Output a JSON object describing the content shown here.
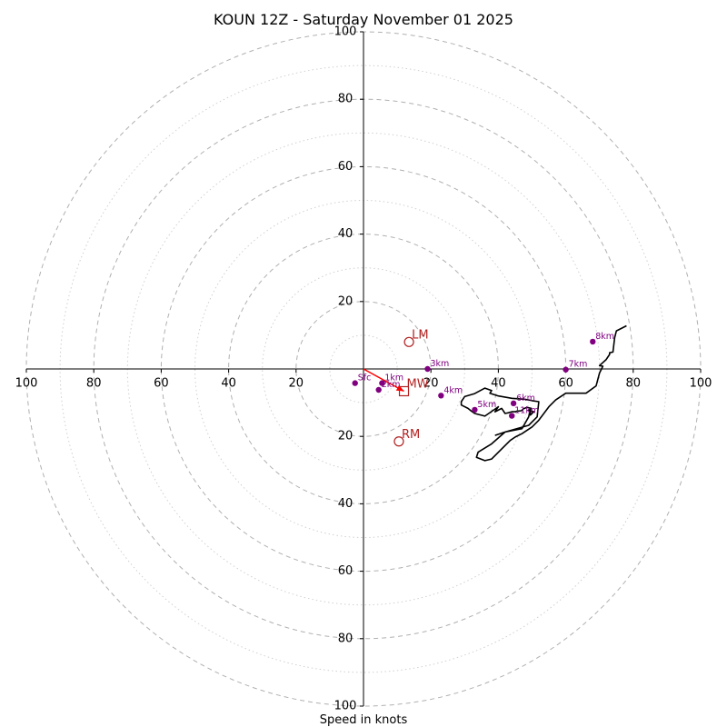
{
  "chart_data": {
    "type": "hodograph",
    "title": "KOUN 12Z - Saturday November 01 2025",
    "xlabel": "Speed in knots",
    "units": "knots",
    "range": [
      -100,
      100
    ],
    "ring_major": [
      20,
      40,
      60,
      80,
      100
    ],
    "ring_minor": [
      10,
      30,
      50,
      70,
      90
    ],
    "ticks": {
      "x": [
        {
          "v": -100,
          "label": "100"
        },
        {
          "v": -80,
          "label": "80"
        },
        {
          "v": -60,
          "label": "60"
        },
        {
          "v": -40,
          "label": "40"
        },
        {
          "v": -20,
          "label": "20"
        },
        {
          "v": 20,
          "label": "20"
        },
        {
          "v": 40,
          "label": "40"
        },
        {
          "v": 60,
          "label": "60"
        },
        {
          "v": 80,
          "label": "80"
        },
        {
          "v": 100,
          "label": "100"
        }
      ],
      "y": [
        {
          "v": 100,
          "label": "100"
        },
        {
          "v": 80,
          "label": "80"
        },
        {
          "v": 60,
          "label": "60"
        },
        {
          "v": 40,
          "label": "40"
        },
        {
          "v": 20,
          "label": "20"
        },
        {
          "v": -20,
          "label": "20"
        },
        {
          "v": -40,
          "label": "40"
        },
        {
          "v": -60,
          "label": "60"
        },
        {
          "v": -80,
          "label": "80"
        },
        {
          "v": -100,
          "label": "100"
        }
      ]
    },
    "wind_profile": [
      [
        -13,
        -12.5
      ],
      [
        -10,
        -11.5
      ],
      [
        -5,
        -10.5
      ],
      [
        -3,
        -7
      ],
      [
        -2.5,
        -4.5
      ],
      [
        -2.5,
        -6.5
      ],
      [
        -1.5,
        -5.5
      ],
      [
        -3,
        -5
      ],
      [
        -2.2,
        -4.5
      ],
      [
        -3.5,
        -4.2
      ],
      [
        -4.5,
        -4.6
      ],
      [
        -5.2,
        -5.2
      ],
      [
        -6.5,
        -5.3
      ],
      [
        -7,
        -5.5
      ],
      [
        -8,
        -5.5
      ],
      [
        -9,
        -5.8
      ],
      [
        -10,
        -6
      ],
      [
        -11,
        -4.5
      ],
      [
        -13,
        -5.5
      ],
      [
        -12,
        -4
      ],
      [
        -16,
        -6.8
      ],
      [
        -19,
        -6
      ],
      [
        -20,
        -5.3
      ],
      [
        -21,
        -4.5
      ],
      [
        -23,
        -3.5
      ],
      [
        -23,
        -2.5
      ],
      [
        -22,
        -1
      ],
      [
        -19,
        -0.1
      ],
      [
        -16,
        1.5
      ],
      [
        -14,
        0.8
      ],
      [
        -14.5,
        0
      ],
      [
        -12,
        -0.8
      ],
      [
        -8,
        -1.5
      ],
      [
        -4,
        -1.8
      ],
      [
        -2,
        -2.2
      ],
      [
        0,
        -2.5
      ],
      [
        -0.5,
        -7
      ],
      [
        -3,
        -9.5
      ],
      [
        -10,
        -11.5
      ],
      [
        -14,
        -15
      ],
      [
        -18,
        -17.5
      ],
      [
        -18.5,
        -19
      ],
      [
        -16,
        -20
      ],
      [
        -14,
        -19.5
      ],
      [
        -8.5,
        -14
      ],
      [
        -7,
        -13
      ],
      [
        -5,
        -12
      ],
      [
        -2,
        -10
      ],
      [
        0,
        -8
      ],
      [
        3,
        -4
      ],
      [
        5,
        -2
      ],
      [
        8,
        0
      ],
      [
        14,
        0
      ],
      [
        17,
        2.2
      ],
      [
        18,
        6
      ],
      [
        19,
        8
      ],
      [
        18,
        8.2
      ],
      [
        20,
        10
      ],
      [
        21,
        11.5
      ],
      [
        21,
        12
      ],
      [
        22,
        12.2
      ],
      [
        22.5,
        16.5
      ],
      [
        23,
        18.5
      ],
      [
        25,
        19.5
      ],
      [
        26,
        20
      ]
    ],
    "wind_profile_offset": [
      52,
      -7.2
    ],
    "altitude_markers": [
      {
        "label": "Sfc",
        "u": -2.5,
        "v": -4.2
      },
      {
        "label": "1km",
        "u": 5.5,
        "v": -4.2
      },
      {
        "label": "2km",
        "u": 4.5,
        "v": -6.2
      },
      {
        "label": "3km",
        "u": 19,
        "v": 0.0
      },
      {
        "label": "4km",
        "u": 23,
        "v": -7.9
      },
      {
        "label": "5km",
        "u": 33,
        "v": -12.1
      },
      {
        "label": "6km",
        "u": 44.5,
        "v": -10.2
      },
      {
        "label": "7km",
        "u": 60,
        "v": -0.2
      },
      {
        "label": "8km",
        "u": 68,
        "v": 8.1
      },
      {
        "label": "11km",
        "u": 44,
        "v": -13.9
      }
    ],
    "storm_motion": [
      {
        "label": "LM",
        "u": 13.5,
        "v": 8,
        "marker": "circle"
      },
      {
        "label": "MW",
        "u": 12,
        "v": -6.6,
        "marker": "square"
      },
      {
        "label": "RM",
        "u": 10.5,
        "v": -21.5,
        "marker": "circle"
      }
    ],
    "shear_arrow": {
      "u0": 0,
      "v0": 0,
      "u1": 12,
      "v1": -6.6
    },
    "colors": {
      "profile": "#000000",
      "altitude_marker": "#800080",
      "storm_motion": "#b22222",
      "shear_arrow": "#ff0000",
      "ring_major": "#b0b0b0",
      "ring_minor": "#d0d0d0"
    }
  }
}
